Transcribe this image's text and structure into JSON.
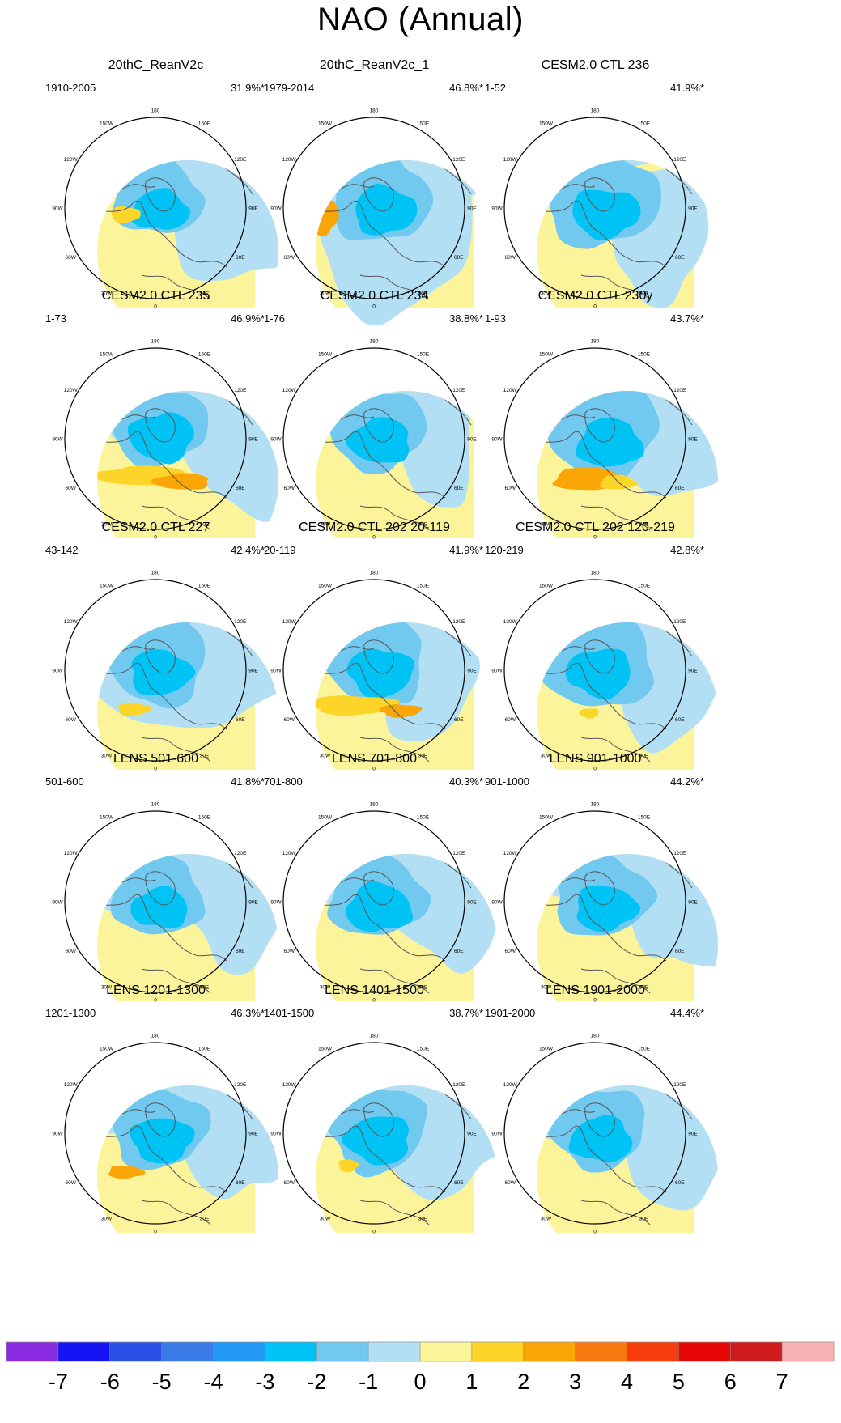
{
  "title": "NAO (Annual)",
  "chart_data": {
    "type": "heatmap",
    "title": "NAO (Annual)",
    "map_projection": "north polar stereographic",
    "longitude_labels": [
      "180",
      "150E",
      "120E",
      "90E",
      "60E",
      "30E",
      "0",
      "30W",
      "60W",
      "90W",
      "120W",
      "150W"
    ],
    "colorbar": {
      "tick_labels": [
        "-7",
        "-6",
        "-5",
        "-4",
        "-3",
        "-2",
        "-1",
        "0",
        "1",
        "2",
        "3",
        "4",
        "5",
        "6",
        "7"
      ],
      "colors": [
        "#8a2be2",
        "#1414f5",
        "#2a4fe6",
        "#3b7be8",
        "#2399f5",
        "#00c3f5",
        "#72c9f0",
        "#b3dff5",
        "#fbf49a",
        "#fdd528",
        "#f9a606",
        "#f7790f",
        "#f73d0d",
        "#e80707",
        "#cf1b1b",
        "#f8b2b6"
      ]
    },
    "panels": [
      {
        "title": "20thC_ReanV2c",
        "period": "1910-2005",
        "variance_explained": "31.9%*"
      },
      {
        "title": "20thC_ReanV2c_1",
        "period": "1979-2014",
        "variance_explained": "46.8%*"
      },
      {
        "title": "CESM2.0 CTL 236",
        "period": "1-52",
        "variance_explained": "41.9%*"
      },
      {
        "title": "CESM2.0 CTL 235",
        "period": "1-73",
        "variance_explained": "46.9%*"
      },
      {
        "title": "CESM2.0 CTL 234",
        "period": "1-76",
        "variance_explained": "38.8%*"
      },
      {
        "title": "CESM2.0 CTL 230y",
        "period": "1-93",
        "variance_explained": "43.7%*"
      },
      {
        "title": "CESM2.0 CTL 227",
        "period": "43-142",
        "variance_explained": "42.4%*"
      },
      {
        "title": "CESM2.0 CTL 202 20-119",
        "period": "20-119",
        "variance_explained": "41.9%*"
      },
      {
        "title": "CESM2.0 CTL 202 120-219",
        "period": "120-219",
        "variance_explained": "42.8%*"
      },
      {
        "title": "LENS 501-600",
        "period": "501-600",
        "variance_explained": "41.8%*"
      },
      {
        "title": "LENS 701-800",
        "period": "701-800",
        "variance_explained": "40.3%*"
      },
      {
        "title": "LENS 901-1000",
        "period": "901-1000",
        "variance_explained": "44.2%*"
      },
      {
        "title": "LENS 1201-1300",
        "period": "1201-1300",
        "variance_explained": "46.3%*"
      },
      {
        "title": "LENS 1401-1500",
        "period": "1401-1500",
        "variance_explained": "38.7%*"
      },
      {
        "title": "LENS 1901-2000",
        "period": "1901-2000",
        "variance_explained": "44.4%*"
      }
    ]
  }
}
